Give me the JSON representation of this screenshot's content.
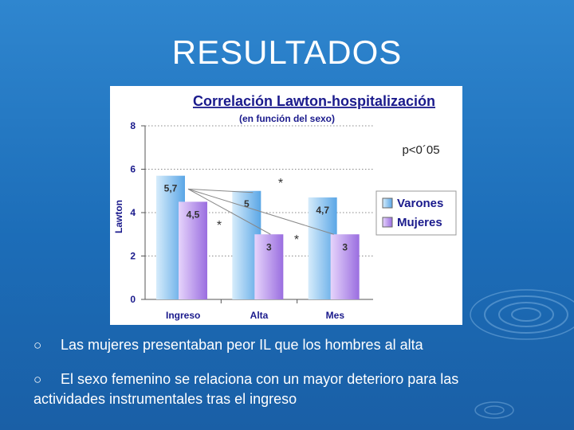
{
  "slide": {
    "title": "RESULTADOS",
    "bullet_symbol": "○",
    "bullets": [
      "Las mujeres presentaban peor IL que los hombres al alta",
      "El sexo femenino se relaciona con un mayor deterioro para las actividades instrumentales tras el ingreso"
    ],
    "colors": {
      "background": "#1f74c1",
      "varones": "#8fc3ef",
      "mujeres": "#b690e6"
    }
  },
  "chart_data": {
    "type": "bar",
    "title": "Correlación Lawton-hospitalización",
    "subtitle": "(en función del sexo)",
    "ylabel": "Lawton",
    "xlabel": "",
    "ylim": [
      0,
      8
    ],
    "yticks": [
      0,
      2,
      4,
      6,
      8
    ],
    "categories": [
      "Ingreso",
      "Alta",
      "Mes"
    ],
    "series": [
      {
        "name": "Varones",
        "values": [
          5.7,
          5,
          4.7
        ],
        "labels": [
          "5,7",
          "5",
          "4,7"
        ],
        "color": "#8fc3ef"
      },
      {
        "name": "Mujeres",
        "values": [
          4.5,
          3,
          3
        ],
        "labels": [
          "4,5",
          "3",
          "3"
        ],
        "color": "#b690e6"
      }
    ],
    "annotation": "p<0´05",
    "significance_marks": [
      "*",
      "*",
      "*"
    ],
    "legend_position": "right",
    "grid": "horizontal dotted"
  }
}
